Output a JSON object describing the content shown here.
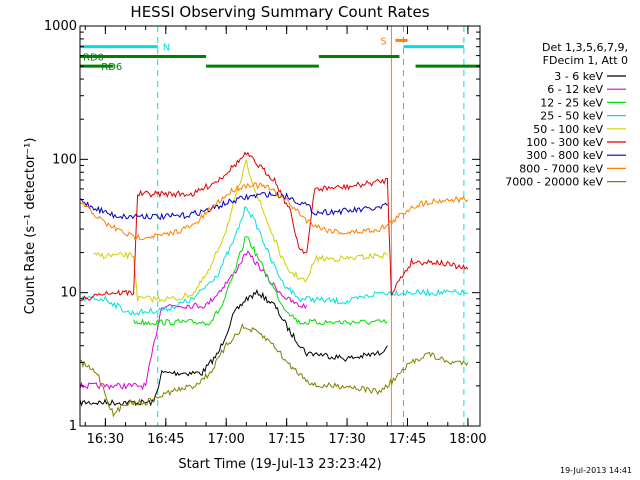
{
  "chart_data": {
    "type": "line",
    "title": "HESSI Observing Summary Count Rates",
    "xlabel": "Start Time (19-Jul-13 23:23:42)",
    "ylabel": "Count Rate (s⁻¹ detector⁻¹)",
    "yscale": "log",
    "xlim": [
      "16:23:42",
      "18:03:00"
    ],
    "ylim": [
      1,
      1000
    ],
    "x_ticks": [
      "16:30",
      "16:45",
      "17:00",
      "17:15",
      "17:30",
      "17:45",
      "18:00"
    ],
    "y_ticks": [
      "1",
      "10",
      "100",
      "1000"
    ],
    "legend_header": [
      "Det 1,3,5,6,7,9,",
      "FDecim 1, Att 0"
    ],
    "legend_position": "right",
    "grid": false,
    "series": [
      {
        "name": "3 - 6 keV",
        "color": "#000000",
        "x": [
          "16:23:42",
          "16:31",
          "16:32",
          "16:42",
          "16:44",
          "16:46",
          "16:54",
          "16:58",
          "17:02",
          "17:05",
          "17:08",
          "17:12",
          "17:16",
          "17:20",
          "17:22",
          "17:30",
          "17:38",
          "17:40"
        ],
        "y": [
          1.5,
          1.5,
          1.5,
          1.5,
          2.5,
          2.5,
          2.5,
          3.5,
          7,
          9,
          10,
          8,
          5,
          3.5,
          3.5,
          3.2,
          3.5,
          4
        ]
      },
      {
        "name": "6 - 12 keV",
        "color": "#e000e0",
        "x": [
          "16:23:42",
          "16:31",
          "16:32",
          "16:40",
          "16:44",
          "16:50",
          "16:55",
          "16:58",
          "17:02",
          "17:05",
          "17:08",
          "17:11",
          "17:15",
          "17:18",
          "17:20"
        ],
        "y": [
          2,
          2,
          2,
          2,
          8,
          8,
          8,
          10,
          14,
          20,
          16,
          12,
          9,
          8,
          8
        ]
      },
      {
        "name": "12 - 25 keV",
        "color": "#00e000",
        "x": [
          "16:37",
          "16:44",
          "16:50",
          "16:56",
          "16:59",
          "17:02",
          "17:05",
          "17:08",
          "17:11",
          "17:14",
          "17:18",
          "17:20",
          "17:22",
          "17:30",
          "17:38",
          "17:40"
        ],
        "y": [
          6,
          6,
          6,
          6,
          8,
          14,
          27,
          18,
          12,
          8,
          6,
          6,
          6,
          6,
          6,
          6
        ]
      },
      {
        "name": "25 - 50 keV",
        "color": "#00e0e0",
        "x": [
          "16:23:42",
          "16:30",
          "16:36",
          "16:45",
          "16:52",
          "16:58",
          "17:02",
          "17:05",
          "17:08",
          "17:11",
          "17:14",
          "17:18",
          "17:20",
          "17:30",
          "17:38",
          "17:40",
          "17:46",
          "17:50",
          "17:56",
          "18:00"
        ],
        "y": [
          9,
          9,
          7,
          7.5,
          9,
          14,
          25,
          45,
          30,
          18,
          12,
          9,
          9,
          8.5,
          10,
          10,
          10,
          10,
          10,
          10
        ]
      },
      {
        "name": "50 - 100 keV",
        "color": "#d0d000",
        "x": [
          "16:27",
          "16:37",
          "16:38",
          "16:45",
          "16:48",
          "16:52",
          "16:56",
          "17:00",
          "17:03",
          "17:05",
          "17:08",
          "17:12",
          "17:15",
          "17:20",
          "17:22",
          "17:30",
          "17:38",
          "17:40"
        ],
        "y": [
          19,
          19,
          9,
          9,
          9,
          10,
          15,
          30,
          60,
          95,
          50,
          25,
          15,
          12,
          18,
          18,
          19,
          19
        ]
      },
      {
        "name": "100 - 300 keV",
        "color": "#e00000",
        "x": [
          "16:23:42",
          "16:27",
          "16:28",
          "16:37",
          "16:38",
          "16:45",
          "16:47",
          "16:52",
          "16:58",
          "17:02",
          "17:05",
          "17:08",
          "17:12",
          "17:16",
          "17:18",
          "17:20",
          "17:22",
          "17:30",
          "17:38",
          "17:40",
          "17:41",
          "17:46",
          "17:48",
          "17:52",
          "17:56",
          "18:00"
        ],
        "y": [
          9,
          9,
          10,
          10,
          55,
          55,
          55,
          55,
          70,
          90,
          110,
          90,
          70,
          40,
          22,
          20,
          60,
          62,
          68,
          70,
          10,
          17,
          17,
          17,
          16,
          15
        ]
      },
      {
        "name": "300 - 800 keV",
        "color": "#0000c0",
        "x": [
          "16:23:42",
          "16:26",
          "16:32",
          "16:36",
          "16:38",
          "16:44",
          "16:50",
          "16:56",
          "17:00",
          "17:05",
          "17:10",
          "17:15",
          "17:18",
          "17:20",
          "17:22",
          "17:30",
          "17:38",
          "17:40"
        ],
        "y": [
          50,
          45,
          38,
          37,
          38,
          37,
          38,
          42,
          47,
          52,
          55,
          53,
          48,
          45,
          40,
          41,
          43,
          45
        ]
      },
      {
        "name": "800 - 7000 keV",
        "color": "#ff8000",
        "x": [
          "16:23:42",
          "16:30",
          "16:37",
          "16:45",
          "16:52",
          "16:58",
          "17:02",
          "17:06",
          "17:10",
          "17:14",
          "17:18",
          "17:20",
          "17:24",
          "17:30",
          "17:38",
          "17:40",
          "17:46",
          "17:50",
          "17:56",
          "18:00"
        ],
        "y": [
          48,
          33,
          26,
          27,
          32,
          48,
          60,
          65,
          62,
          52,
          40,
          35,
          30,
          28,
          30,
          32,
          44,
          48,
          50,
          50
        ]
      },
      {
        "name": "7000 - 20000 keV",
        "color": "#808000",
        "x": [
          "16:23:42",
          "16:28",
          "16:32",
          "16:35",
          "16:40",
          "16:46",
          "16:52",
          "16:56",
          "17:00",
          "17:04",
          "17:08",
          "17:12",
          "17:15",
          "17:18",
          "17:22",
          "17:30",
          "17:38",
          "17:40",
          "17:46",
          "17:50",
          "17:55",
          "18:00"
        ],
        "y": [
          3,
          2.5,
          1.2,
          1.5,
          1.5,
          1.8,
          2,
          2.5,
          4,
          5.5,
          5,
          4,
          3,
          2.5,
          2,
          2,
          1.8,
          2,
          3,
          3.5,
          3,
          3
        ]
      }
    ],
    "flag_labels": {
      "night": "N",
      "saa": "S",
      "rd0": "RD0",
      "rd6": "RD6"
    },
    "flags": {
      "night": {
        "color": "#00e0e0",
        "level": 700,
        "intervals": [
          [
            "16:23:42",
            "16:43"
          ],
          [
            "17:44",
            "17:59"
          ]
        ],
        "dashed_lines": [
          "16:43",
          "17:59"
        ],
        "solid_lines": [
          "16:23:42"
        ]
      },
      "saa": {
        "color": "#ff8000",
        "level": 780,
        "intervals": [
          [
            "17:42",
            "17:45"
          ]
        ],
        "dashed_lines": [
          "17:44"
        ],
        "solid_lines": [
          "17:41"
        ]
      },
      "rd0": {
        "color": "#008000",
        "level": 590,
        "intervals": [
          [
            "16:23:42",
            "16:55"
          ],
          [
            "17:23",
            "17:43"
          ]
        ]
      },
      "rd6": {
        "color": "#008000",
        "level": 500,
        "intervals": [
          [
            "16:23:42",
            "16:32"
          ],
          [
            "16:55",
            "17:23"
          ],
          [
            "17:47",
            "18:03"
          ]
        ]
      }
    },
    "timestamp": "19-Jul-2013 14:41"
  }
}
